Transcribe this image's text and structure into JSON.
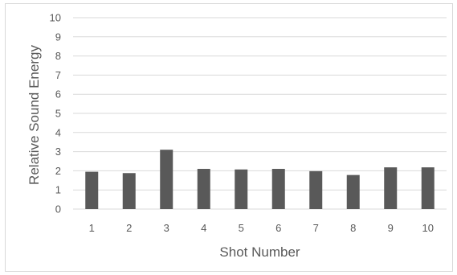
{
  "chart_data": {
    "type": "bar",
    "categories": [
      "1",
      "2",
      "3",
      "4",
      "5",
      "6",
      "7",
      "8",
      "9",
      "10"
    ],
    "values": [
      1.95,
      1.88,
      3.1,
      2.1,
      2.07,
      2.1,
      1.98,
      1.78,
      2.18,
      2.18
    ],
    "title": "",
    "xlabel": "Shot Number",
    "ylabel": "Relative Sound Energy",
    "ylim": [
      0,
      10
    ],
    "yticks": [
      "0",
      "1",
      "2",
      "3",
      "4",
      "5",
      "6",
      "7",
      "8",
      "9",
      "10"
    ],
    "grid": true,
    "legend": "none",
    "bar_color": "#595959",
    "grid_color": "#d9d9d9"
  }
}
